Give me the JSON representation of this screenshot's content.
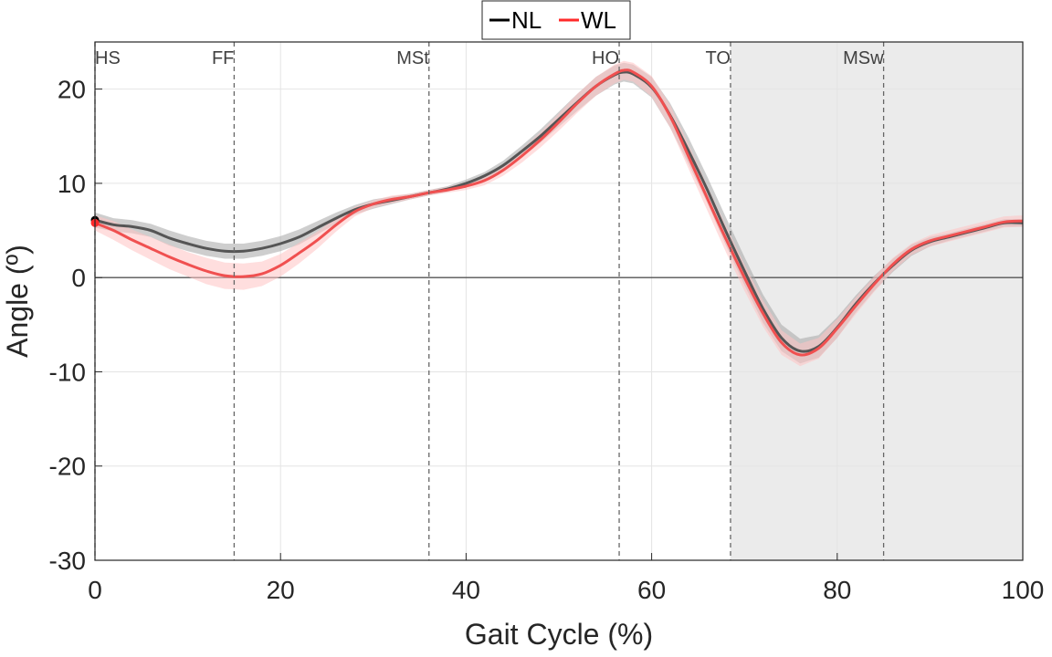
{
  "chart_data": {
    "type": "line",
    "title": "",
    "xlabel": "Gait Cycle (%)",
    "ylabel": "Angle (º)",
    "xlim": [
      0,
      100
    ],
    "ylim": [
      -30,
      25
    ],
    "xticks": [
      0,
      20,
      40,
      60,
      80,
      100
    ],
    "yticks": [
      -30,
      -20,
      -10,
      0,
      10,
      20
    ],
    "grid": true,
    "legend_position": "top-center",
    "swing_phase_shading": [
      68.5,
      100
    ],
    "events": [
      {
        "label": "HS",
        "x": 0
      },
      {
        "label": "FF",
        "x": 15
      },
      {
        "label": "MSt",
        "x": 36
      },
      {
        "label": "HO",
        "x": 56.5
      },
      {
        "label": "TO",
        "x": 68.5
      },
      {
        "label": "MSw",
        "x": 85
      }
    ],
    "series": [
      {
        "name": "NL",
        "color": "#000000",
        "band_color": "#a6a6a6",
        "x": [
          0,
          2,
          4,
          6,
          8,
          10,
          12,
          14,
          16,
          18,
          20,
          22,
          24,
          26,
          28,
          30,
          32,
          34,
          36,
          38,
          40,
          42,
          44,
          46,
          48,
          50,
          52,
          54,
          56,
          57,
          58,
          60,
          62,
          64,
          66,
          68,
          70,
          72,
          74,
          76,
          78,
          80,
          82,
          84,
          86,
          88,
          90,
          92,
          94,
          96,
          98,
          100
        ],
        "y": [
          6.1,
          5.6,
          5.4,
          5.0,
          4.2,
          3.6,
          3.1,
          2.8,
          2.8,
          3.1,
          3.6,
          4.3,
          5.3,
          6.3,
          7.2,
          7.8,
          8.2,
          8.6,
          9.0,
          9.4,
          10.0,
          10.8,
          11.9,
          13.4,
          15.0,
          16.8,
          18.6,
          20.3,
          21.5,
          21.8,
          21.6,
          20.2,
          17.2,
          13.4,
          9.3,
          4.9,
          0.7,
          -3.3,
          -6.4,
          -7.8,
          -7.3,
          -5.3,
          -2.8,
          -0.6,
          1.3,
          2.9,
          3.8,
          4.3,
          4.8,
          5.3,
          5.8,
          5.8
        ],
        "band": [
          0.8,
          0.7,
          0.7,
          0.7,
          0.8,
          0.8,
          0.8,
          0.8,
          0.8,
          0.8,
          0.8,
          0.8,
          0.7,
          0.6,
          0.5,
          0.5,
          0.4,
          0.3,
          0.3,
          0.3,
          0.4,
          0.4,
          0.5,
          0.6,
          0.7,
          0.8,
          0.9,
          1.0,
          1.0,
          1.0,
          1.0,
          1.1,
          1.3,
          1.4,
          1.4,
          1.5,
          1.5,
          1.5,
          1.4,
          1.3,
          1.2,
          1.1,
          0.9,
          0.8,
          0.7,
          0.6,
          0.5,
          0.4,
          0.4,
          0.4,
          0.4,
          0.4
        ]
      },
      {
        "name": "WL",
        "color": "#ff2a2a",
        "band_color": "#ffc2c2",
        "x": [
          0,
          2,
          4,
          6,
          8,
          10,
          12,
          14,
          16,
          18,
          20,
          22,
          24,
          26,
          28,
          30,
          32,
          34,
          36,
          38,
          40,
          42,
          44,
          46,
          48,
          50,
          52,
          54,
          56,
          57,
          58,
          60,
          62,
          64,
          66,
          68,
          70,
          72,
          74,
          76,
          78,
          80,
          82,
          84,
          86,
          88,
          90,
          92,
          94,
          96,
          98,
          100
        ],
        "y": [
          5.8,
          5.0,
          4.0,
          3.1,
          2.2,
          1.4,
          0.7,
          0.2,
          0.1,
          0.4,
          1.3,
          2.6,
          4.0,
          5.6,
          7.0,
          7.8,
          8.3,
          8.6,
          9.0,
          9.3,
          9.7,
          10.3,
          11.4,
          12.9,
          14.6,
          16.5,
          18.5,
          20.3,
          21.6,
          22.0,
          21.8,
          20.3,
          17.1,
          12.8,
          8.4,
          4.1,
          0.0,
          -3.8,
          -6.9,
          -8.2,
          -7.5,
          -5.4,
          -3.0,
          -0.7,
          1.4,
          3.0,
          3.9,
          4.4,
          4.9,
          5.4,
          5.9,
          6.0
        ],
        "band": [
          0.8,
          1.0,
          1.1,
          1.2,
          1.3,
          1.3,
          1.4,
          1.4,
          1.4,
          1.3,
          1.2,
          1.1,
          0.9,
          0.7,
          0.5,
          0.4,
          0.4,
          0.3,
          0.3,
          0.3,
          0.4,
          0.5,
          0.6,
          0.7,
          0.8,
          0.9,
          1.0,
          1.0,
          1.0,
          1.0,
          1.0,
          1.1,
          1.2,
          1.3,
          1.3,
          1.4,
          1.4,
          1.4,
          1.3,
          1.2,
          1.1,
          1.0,
          0.9,
          0.8,
          0.7,
          0.6,
          0.6,
          0.6,
          0.6,
          0.6,
          0.6,
          0.6
        ]
      }
    ]
  }
}
